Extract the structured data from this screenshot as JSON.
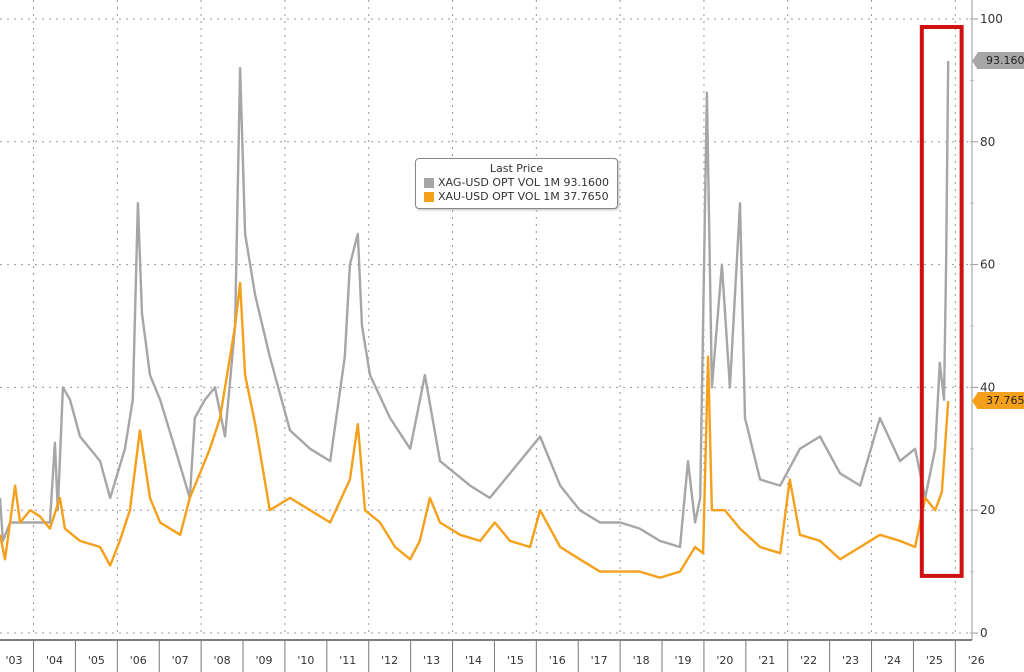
{
  "chart_data": {
    "type": "line",
    "title": "",
    "xlabel": "",
    "ylabel": "",
    "xlim": [
      2003.2,
      2026.35
    ],
    "ylim": [
      0,
      100
    ],
    "y_axis_position": "right",
    "y_ticks": [
      0,
      20,
      40,
      60,
      80,
      100
    ],
    "x_tick_labels": [
      "'03",
      "'04",
      "'05",
      "'06",
      "'07",
      "'08",
      "'09",
      "'10",
      "'11",
      "'12",
      "'13",
      "'14",
      "'15",
      "'16",
      "'17",
      "'18",
      "'19",
      "'20",
      "'21",
      "'22",
      "'23",
      "'24",
      "'25",
      "'26"
    ],
    "grid": true,
    "legend": {
      "title": "Last Price",
      "placement": "top-center",
      "entries": [
        {
          "label": "XAG-USD OPT VOL 1M 93.1600",
          "color": "#a6a6a6"
        },
        {
          "label": "XAU-USD OPT VOL 1M 37.7650",
          "color": "#f5a01a"
        }
      ]
    },
    "series": [
      {
        "name": "XAG-USD OPT VOL 1M",
        "color": "#a6a6a6",
        "last_value_label": "93.1600",
        "points": [
          [
            2003.2,
            22
          ],
          [
            2003.27,
            15
          ],
          [
            2003.44,
            18
          ],
          [
            2004.39,
            18
          ],
          [
            2004.51,
            31
          ],
          [
            2004.58,
            20
          ],
          [
            2004.7,
            40
          ],
          [
            2004.87,
            38
          ],
          [
            2005.11,
            32
          ],
          [
            2005.59,
            28
          ],
          [
            2005.83,
            22
          ],
          [
            2006.18,
            30
          ],
          [
            2006.37,
            38
          ],
          [
            2006.49,
            70
          ],
          [
            2006.59,
            52
          ],
          [
            2006.78,
            42
          ],
          [
            2007.02,
            38
          ],
          [
            2007.38,
            30
          ],
          [
            2007.73,
            22
          ],
          [
            2007.85,
            35
          ],
          [
            2008.09,
            38
          ],
          [
            2008.33,
            40
          ],
          [
            2008.57,
            32
          ],
          [
            2008.81,
            50
          ],
          [
            2008.93,
            92
          ],
          [
            2009.05,
            65
          ],
          [
            2009.29,
            55
          ],
          [
            2009.64,
            45
          ],
          [
            2010.12,
            33
          ],
          [
            2010.6,
            30
          ],
          [
            2011.08,
            28
          ],
          [
            2011.43,
            45
          ],
          [
            2011.55,
            60
          ],
          [
            2011.74,
            65
          ],
          [
            2011.84,
            50
          ],
          [
            2012.03,
            42
          ],
          [
            2012.51,
            35
          ],
          [
            2012.99,
            30
          ],
          [
            2013.34,
            42
          ],
          [
            2013.7,
            28
          ],
          [
            2014.42,
            24
          ],
          [
            2014.89,
            22
          ],
          [
            2015.25,
            25
          ],
          [
            2015.61,
            28
          ],
          [
            2016.09,
            32
          ],
          [
            2016.57,
            24
          ],
          [
            2017.04,
            20
          ],
          [
            2017.52,
            18
          ],
          [
            2018.0,
            18
          ],
          [
            2018.47,
            17
          ],
          [
            2018.95,
            15
          ],
          [
            2019.43,
            14
          ],
          [
            2019.62,
            28
          ],
          [
            2019.79,
            18
          ],
          [
            2019.91,
            22
          ],
          [
            2020.07,
            88
          ],
          [
            2020.19,
            40
          ],
          [
            2020.43,
            60
          ],
          [
            2020.62,
            40
          ],
          [
            2020.86,
            70
          ],
          [
            2020.98,
            35
          ],
          [
            2021.34,
            25
          ],
          [
            2021.82,
            24
          ],
          [
            2022.29,
            30
          ],
          [
            2022.77,
            32
          ],
          [
            2023.25,
            26
          ],
          [
            2023.73,
            24
          ],
          [
            2024.2,
            35
          ],
          [
            2024.68,
            28
          ],
          [
            2025.04,
            30
          ],
          [
            2025.28,
            22
          ],
          [
            2025.52,
            30
          ],
          [
            2025.63,
            44
          ],
          [
            2025.73,
            38
          ],
          [
            2025.78,
            60
          ],
          [
            2025.83,
            93.16
          ]
        ]
      },
      {
        "name": "XAU-USD OPT VOL 1M",
        "color": "#f5a01a",
        "last_value_label": "37.7650",
        "points": [
          [
            2003.2,
            16
          ],
          [
            2003.32,
            12
          ],
          [
            2003.56,
            24
          ],
          [
            2003.68,
            18
          ],
          [
            2003.92,
            20
          ],
          [
            2004.15,
            19
          ],
          [
            2004.39,
            17
          ],
          [
            2004.63,
            22
          ],
          [
            2004.75,
            17
          ],
          [
            2005.11,
            15
          ],
          [
            2005.59,
            14
          ],
          [
            2005.83,
            11
          ],
          [
            2006.06,
            15
          ],
          [
            2006.3,
            20
          ],
          [
            2006.54,
            33
          ],
          [
            2006.78,
            22
          ],
          [
            2007.02,
            18
          ],
          [
            2007.5,
            16
          ],
          [
            2007.73,
            22
          ],
          [
            2007.97,
            26
          ],
          [
            2008.21,
            30
          ],
          [
            2008.45,
            35
          ],
          [
            2008.81,
            50
          ],
          [
            2008.93,
            57
          ],
          [
            2009.05,
            42
          ],
          [
            2009.29,
            34
          ],
          [
            2009.64,
            20
          ],
          [
            2010.12,
            22
          ],
          [
            2010.6,
            20
          ],
          [
            2011.08,
            18
          ],
          [
            2011.55,
            25
          ],
          [
            2011.74,
            34
          ],
          [
            2011.91,
            20
          ],
          [
            2012.27,
            18
          ],
          [
            2012.63,
            14
          ],
          [
            2012.99,
            12
          ],
          [
            2013.22,
            15
          ],
          [
            2013.46,
            22
          ],
          [
            2013.7,
            18
          ],
          [
            2014.18,
            16
          ],
          [
            2014.66,
            15
          ],
          [
            2015.01,
            18
          ],
          [
            2015.37,
            15
          ],
          [
            2015.85,
            14
          ],
          [
            2016.09,
            20
          ],
          [
            2016.57,
            14
          ],
          [
            2017.04,
            12
          ],
          [
            2017.52,
            10
          ],
          [
            2018.0,
            10
          ],
          [
            2018.47,
            10
          ],
          [
            2018.95,
            9
          ],
          [
            2019.43,
            10
          ],
          [
            2019.79,
            14
          ],
          [
            2019.98,
            13
          ],
          [
            2020.1,
            45
          ],
          [
            2020.19,
            20
          ],
          [
            2020.5,
            20
          ],
          [
            2020.86,
            17
          ],
          [
            2021.34,
            14
          ],
          [
            2021.82,
            13
          ],
          [
            2022.05,
            25
          ],
          [
            2022.29,
            16
          ],
          [
            2022.77,
            15
          ],
          [
            2023.25,
            12
          ],
          [
            2023.73,
            14
          ],
          [
            2024.2,
            16
          ],
          [
            2024.68,
            15
          ],
          [
            2025.04,
            14
          ],
          [
            2025.28,
            22
          ],
          [
            2025.52,
            20
          ],
          [
            2025.68,
            23
          ],
          [
            2025.83,
            37.765
          ]
        ]
      }
    ],
    "annotations": [
      {
        "type": "rectangle",
        "color": "#d01010",
        "x_range": [
          2025.2,
          2026.15
        ],
        "y_range": [
          9.3,
          98.7
        ]
      }
    ]
  }
}
